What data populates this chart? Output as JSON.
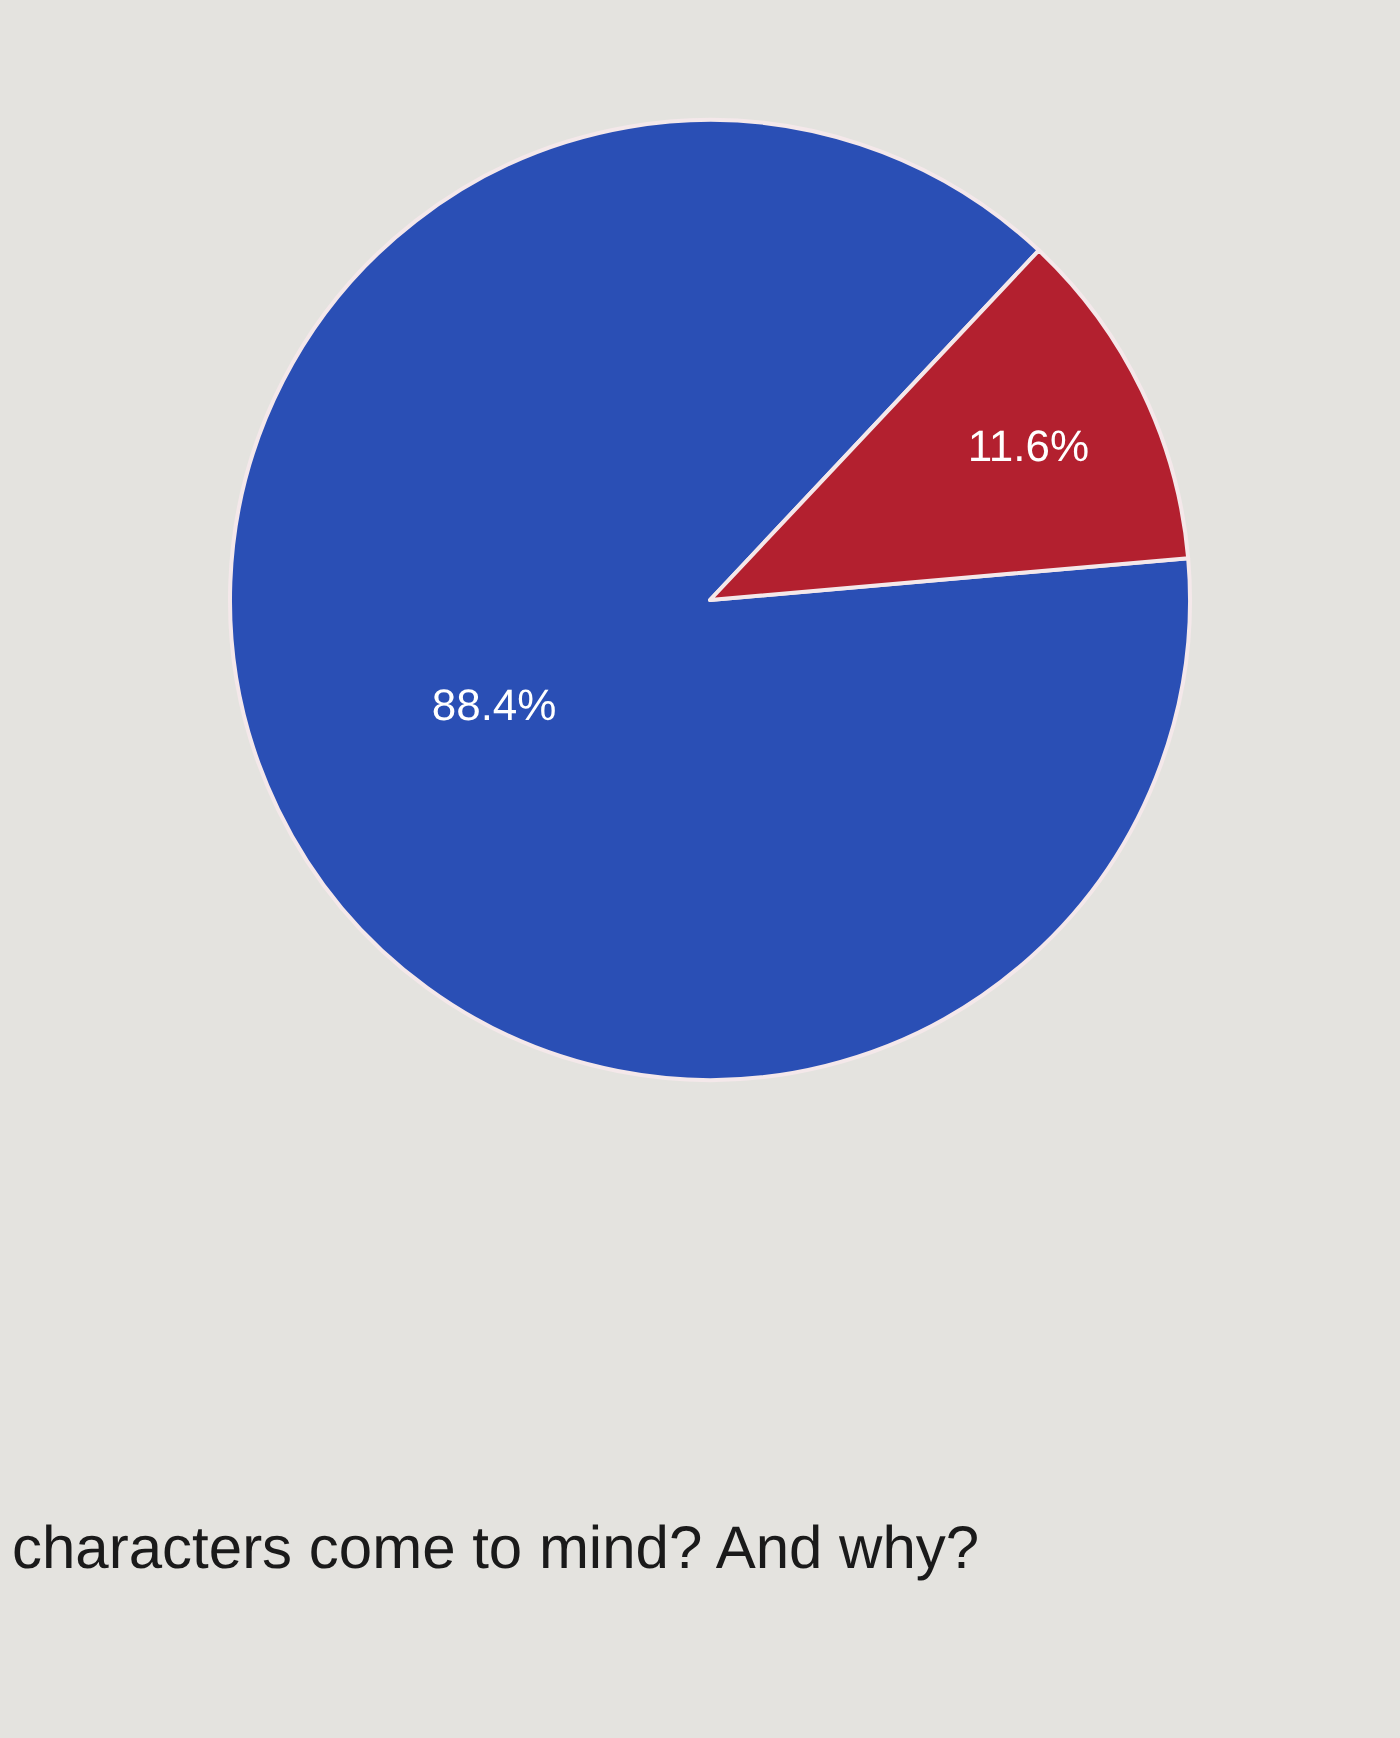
{
  "chart_data": {
    "type": "pie",
    "categories": [
      null,
      null
    ],
    "values": [
      88.4,
      11.6
    ],
    "colors": [
      "#2a4fb5",
      "#b3202f"
    ],
    "value_labels": [
      "88.4%",
      "11.6%"
    ],
    "legend": false,
    "annotations": [
      "characters come to mind? And why?"
    ]
  }
}
